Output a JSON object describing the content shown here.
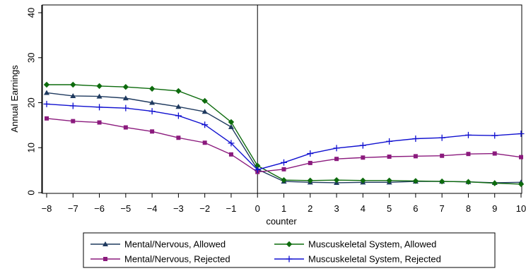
{
  "chart_data": {
    "type": "line",
    "title": "",
    "xlabel": "counter",
    "ylabel": "Annual Earnings",
    "xlim": [
      -8,
      10
    ],
    "ylim": [
      0,
      40
    ],
    "x": [
      -8,
      -7,
      -6,
      -5,
      -4,
      -3,
      -2,
      -1,
      0,
      1,
      2,
      3,
      4,
      5,
      6,
      7,
      8,
      9,
      10
    ],
    "x_tick_labels": [
      "−8",
      "−7",
      "−6",
      "−5",
      "−4",
      "−3",
      "−2",
      "−1",
      "0",
      "1",
      "2",
      "3",
      "4",
      "5",
      "6",
      "7",
      "8",
      "9",
      "10"
    ],
    "y_ticks": [
      0,
      10,
      20,
      30,
      40
    ],
    "y_tick_labels": [
      "0",
      "10",
      "20",
      "30",
      "40"
    ],
    "vertical_reference_line_x": 0,
    "grid": false,
    "legend_position": "bottom",
    "series": [
      {
        "name": "Mental/Nervous, Allowed",
        "color": "#1f3a5f",
        "marker": "triangle",
        "values": [
          22.2,
          21.5,
          21.4,
          21.0,
          20.0,
          19.1,
          18.0,
          14.6,
          5.2,
          2.5,
          2.3,
          2.2,
          2.3,
          2.3,
          2.5,
          2.5,
          2.4,
          2.2,
          2.3
        ]
      },
      {
        "name": "Muscuskeletal System, Allowed",
        "color": "#0d6b0d",
        "marker": "diamond",
        "values": [
          24.0,
          24.0,
          23.7,
          23.5,
          23.1,
          22.6,
          20.4,
          15.7,
          6.0,
          2.8,
          2.7,
          2.8,
          2.7,
          2.7,
          2.6,
          2.5,
          2.4,
          2.1,
          1.9
        ]
      },
      {
        "name": "Mental/Nervous, Rejected",
        "color": "#8b1a7d",
        "marker": "square",
        "values": [
          16.5,
          15.9,
          15.6,
          14.5,
          13.6,
          12.2,
          11.1,
          8.5,
          4.6,
          5.2,
          6.6,
          7.5,
          7.8,
          8.0,
          8.1,
          8.2,
          8.6,
          8.7,
          7.9
        ]
      },
      {
        "name": "Muscuskeletal System, Rejected",
        "color": "#1010d0",
        "marker": "plus",
        "values": [
          19.7,
          19.3,
          19.0,
          18.8,
          18.1,
          17.1,
          15.1,
          11.0,
          5.1,
          6.7,
          8.7,
          9.9,
          10.5,
          11.4,
          12.0,
          12.2,
          12.8,
          12.7,
          13.1
        ]
      }
    ]
  }
}
